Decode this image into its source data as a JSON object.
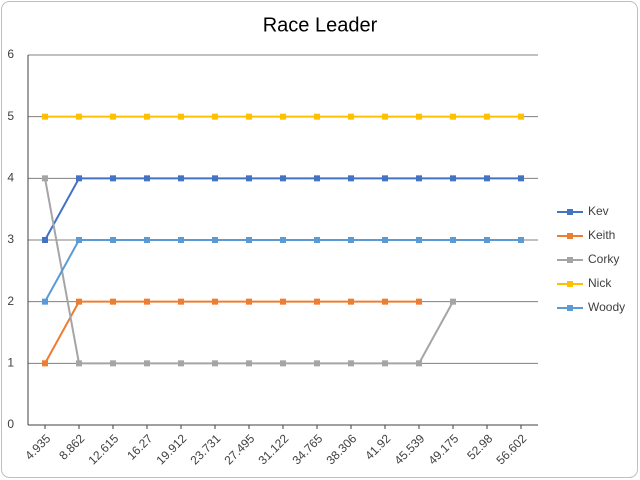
{
  "chart_data": {
    "type": "line",
    "title": "Race Leader",
    "categories": [
      "4.935",
      "8.862",
      "12.615",
      "16.27",
      "19.912",
      "23.731",
      "27.495",
      "31.122",
      "34.765",
      "38.306",
      "41.92",
      "45.539",
      "49.175",
      "52.98",
      "56.602"
    ],
    "series": [
      {
        "name": "Kev",
        "color": "#4472c4",
        "values": [
          3,
          4,
          4,
          4,
          4,
          4,
          4,
          4,
          4,
          4,
          4,
          4,
          4,
          4,
          4
        ]
      },
      {
        "name": "Keith",
        "color": "#ed7d31",
        "values": [
          1,
          2,
          2,
          2,
          2,
          2,
          2,
          2,
          2,
          2,
          2,
          2,
          null,
          null,
          null
        ]
      },
      {
        "name": "Corky",
        "color": "#a5a5a5",
        "values": [
          4,
          1,
          1,
          1,
          1,
          1,
          1,
          1,
          1,
          1,
          1,
          1,
          2,
          null,
          null
        ]
      },
      {
        "name": "Nick",
        "color": "#ffc000",
        "values": [
          5,
          5,
          5,
          5,
          5,
          5,
          5,
          5,
          5,
          5,
          5,
          5,
          5,
          5,
          5
        ]
      },
      {
        "name": "Woody",
        "color": "#5b9bd5",
        "values": [
          2,
          3,
          3,
          3,
          3,
          3,
          3,
          3,
          3,
          3,
          3,
          3,
          3,
          3,
          3
        ]
      }
    ],
    "ylim": [
      0,
      6
    ],
    "yticks": [
      0,
      1,
      2,
      3,
      4,
      5,
      6
    ],
    "grid": true,
    "legend": "right"
  }
}
